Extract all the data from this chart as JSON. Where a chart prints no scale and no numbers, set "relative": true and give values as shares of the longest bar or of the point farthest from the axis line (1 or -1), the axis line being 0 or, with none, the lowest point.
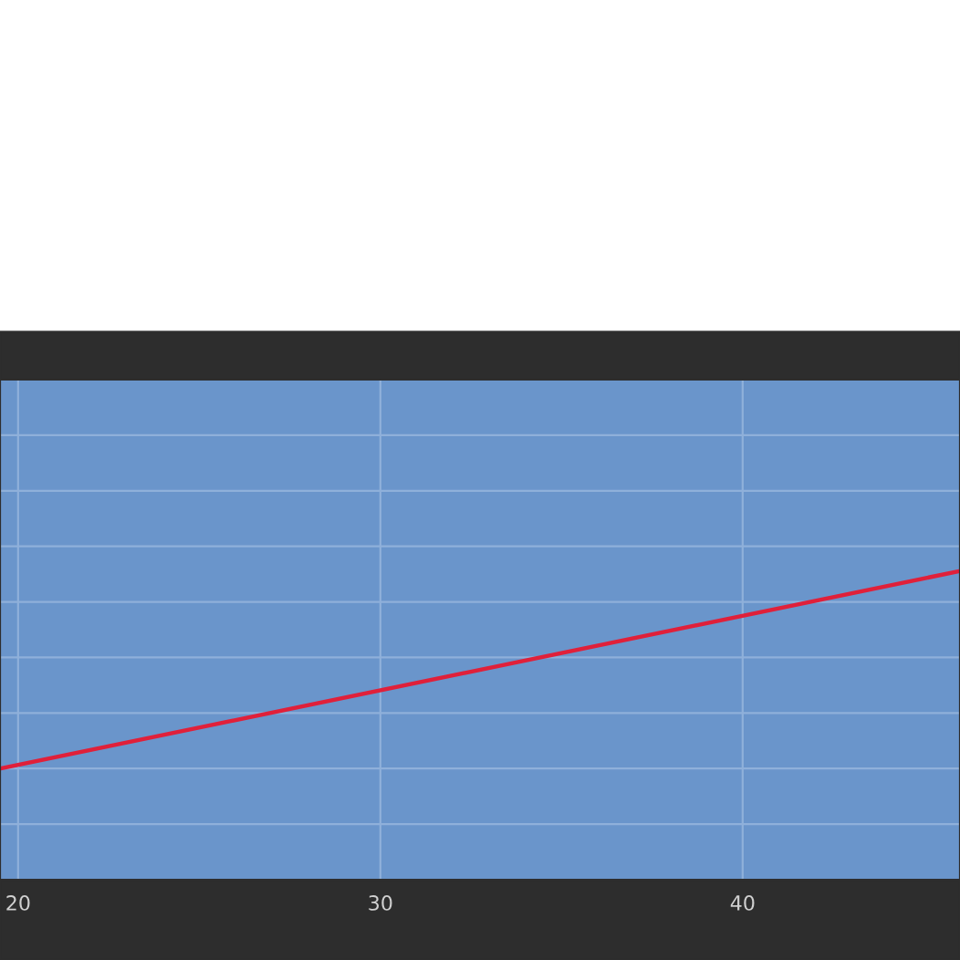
{
  "chart_data": {
    "type": "line",
    "relative": true,
    "x": [
      19.5,
      46
    ],
    "series": [
      {
        "color": "#e0203a",
        "values": [
          0.36,
          1.0
        ]
      }
    ],
    "xlim": [
      19.5,
      46
    ],
    "xticks": [
      20,
      30,
      40
    ],
    "grid": true,
    "legend": false,
    "tick_labels": "x",
    "marker": "none",
    "line_style": "solid"
  }
}
